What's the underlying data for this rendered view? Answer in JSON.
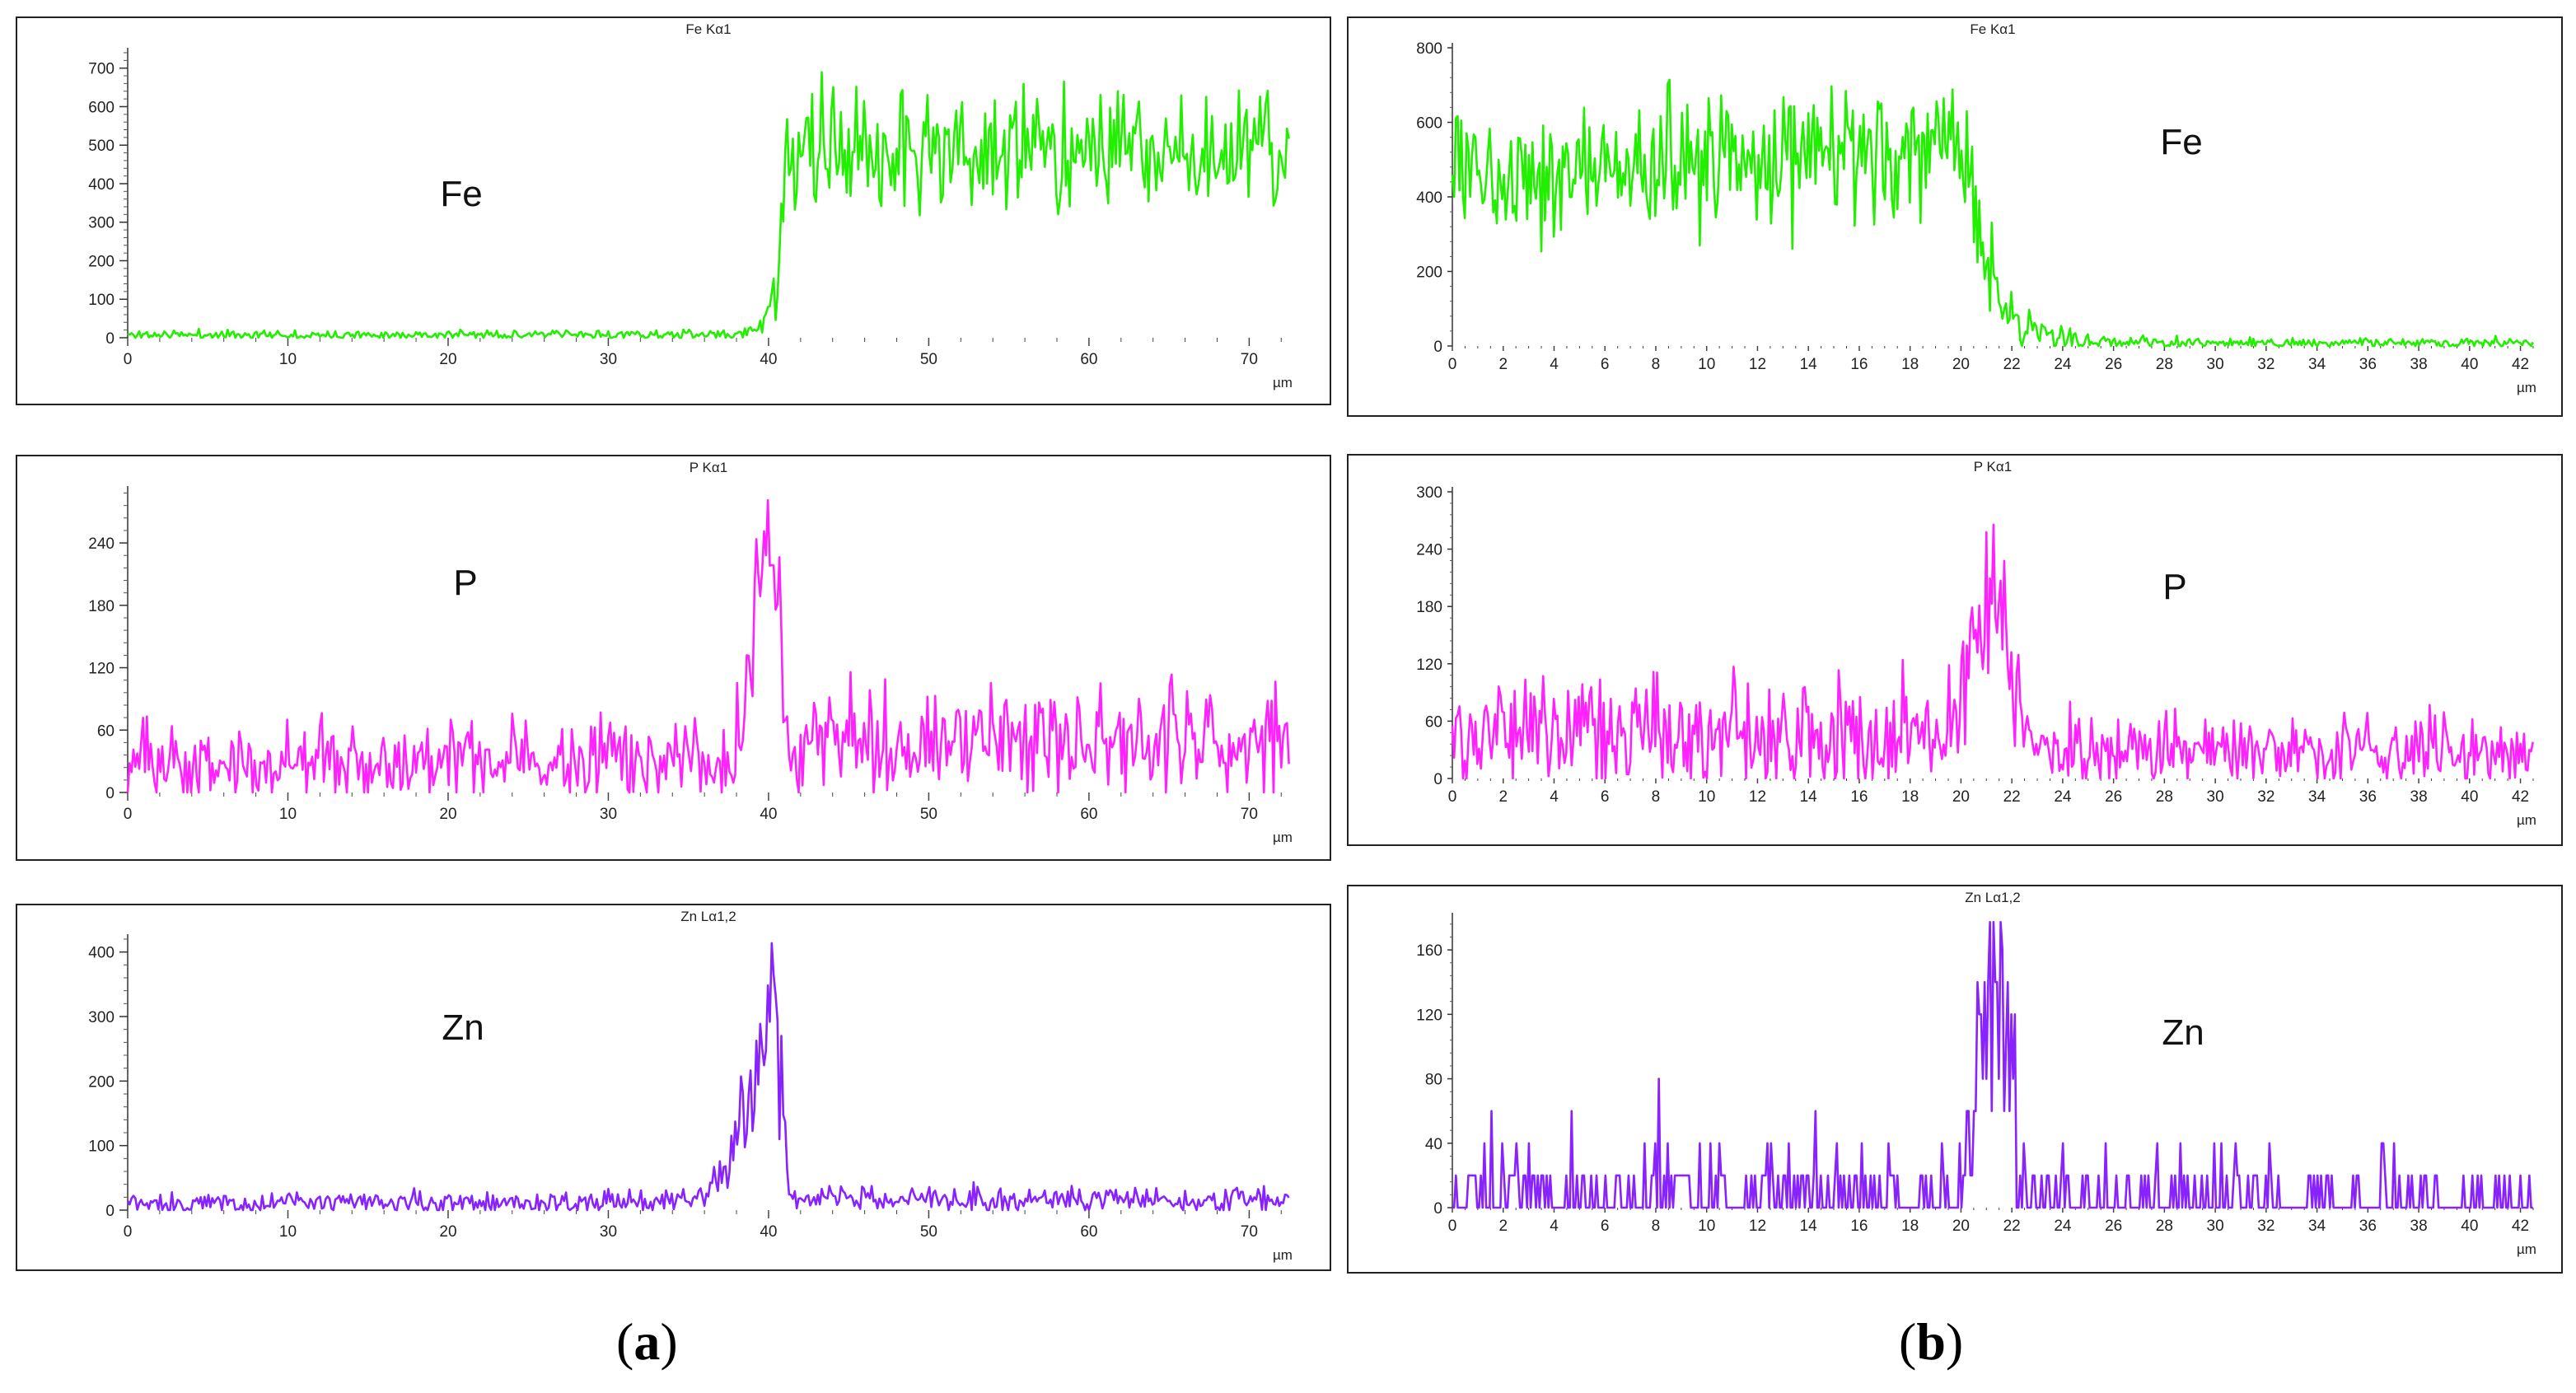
{
  "figure": {
    "captions": [
      {
        "open": "(",
        "letter": "a",
        "close": ")"
      },
      {
        "open": "(",
        "letter": "b",
        "close": ")"
      }
    ]
  },
  "chart_data": [
    {
      "id": "a-fe",
      "type": "line",
      "title": "Fe Kα1",
      "element_label": "Fe",
      "x_unit": "µm",
      "color": "#22ee00",
      "xlim": [
        0,
        72.5
      ],
      "ylim": [
        0,
        740
      ],
      "xticks": [
        0,
        10,
        20,
        30,
        40,
        50,
        60,
        70
      ],
      "yticks": [
        0,
        100,
        200,
        300,
        400,
        500,
        600,
        700
      ],
      "series": [
        {
          "name": "Fe Kα1",
          "noise": "gauss",
          "seed": 11,
          "step": 0.12,
          "profile": [
            [
              0,
              8,
              6
            ],
            [
              38,
              8,
              6
            ],
            [
              39.5,
              30,
              15
            ],
            [
              40.5,
              120,
              40
            ],
            [
              41,
              420,
              70
            ],
            [
              42,
              470,
              80
            ],
            [
              46,
              490,
              85
            ],
            [
              47,
              480,
              80
            ],
            [
              60,
              490,
              75
            ],
            [
              72.5,
              480,
              75
            ]
          ]
        }
      ]
    },
    {
      "id": "a-p",
      "type": "line",
      "title": "P Kα1",
      "element_label": "P",
      "x_unit": "µm",
      "color": "#ff22ff",
      "xlim": [
        0,
        72.5
      ],
      "ylim": [
        0,
        290
      ],
      "xticks": [
        0,
        10,
        20,
        30,
        40,
        50,
        60,
        70
      ],
      "yticks": [
        0,
        60,
        120,
        180,
        240
      ],
      "series": [
        {
          "name": "P Kα1",
          "noise": "gauss",
          "seed": 23,
          "step": 0.12,
          "profile": [
            [
              0,
              28,
              20
            ],
            [
              37,
              30,
              20
            ],
            [
              38.5,
              60,
              25
            ],
            [
              39.2,
              200,
              40
            ],
            [
              40,
              240,
              40
            ],
            [
              40.6,
              200,
              40
            ],
            [
              41.2,
              55,
              25
            ],
            [
              72.5,
              50,
              25
            ]
          ]
        }
      ]
    },
    {
      "id": "a-zn",
      "type": "line",
      "title": "Zn Lα1,2",
      "element_label": "Zn",
      "x_unit": "µm",
      "color": "#8822ff",
      "xlim": [
        0,
        72.5
      ],
      "ylim": [
        0,
        420
      ],
      "xticks": [
        0,
        10,
        20,
        30,
        40,
        50,
        60,
        70
      ],
      "yticks": [
        0,
        100,
        200,
        300,
        400
      ],
      "series": [
        {
          "name": "Zn Lα1,2",
          "noise": "gauss",
          "seed": 37,
          "step": 0.12,
          "profile": [
            [
              0,
              10,
              9
            ],
            [
              34,
              12,
              9
            ],
            [
              36,
              30,
              15
            ],
            [
              37.5,
              60,
              25
            ],
            [
              38.5,
              140,
              50
            ],
            [
              39.3,
              230,
              50
            ],
            [
              40.2,
              320,
              60
            ],
            [
              40.9,
              180,
              50
            ],
            [
              41.3,
              20,
              10
            ],
            [
              72.5,
              15,
              10
            ]
          ]
        }
      ]
    },
    {
      "id": "b-fe",
      "type": "line",
      "title": "Fe Kα1",
      "element_label": "Fe",
      "x_unit": "µm",
      "color": "#22ee00",
      "xlim": [
        0,
        42.5
      ],
      "ylim": [
        0,
        800
      ],
      "xticks": [
        0,
        2,
        4,
        6,
        8,
        10,
        12,
        14,
        16,
        18,
        20,
        22,
        24,
        26,
        28,
        30,
        32,
        34,
        36,
        38,
        40,
        42
      ],
      "yticks": [
        0,
        200,
        400,
        600,
        800
      ],
      "series": [
        {
          "name": "Fe Kα1",
          "noise": "gauss",
          "seed": 53,
          "step": 0.07,
          "profile": [
            [
              0,
              470,
              75
            ],
            [
              7,
              470,
              80
            ],
            [
              8.5,
              500,
              90
            ],
            [
              14,
              510,
              90
            ],
            [
              19.5,
              520,
              85
            ],
            [
              20.2,
              470,
              80
            ],
            [
              20.8,
              300,
              70
            ],
            [
              21.4,
              150,
              45
            ],
            [
              22,
              70,
              30
            ],
            [
              23.5,
              30,
              18
            ],
            [
              25,
              10,
              8
            ],
            [
              42.5,
              8,
              7
            ]
          ]
        }
      ]
    },
    {
      "id": "b-p",
      "type": "line",
      "title": "P Kα1",
      "element_label": "P",
      "x_unit": "µm",
      "color": "#ff22ff",
      "xlim": [
        0,
        42.5
      ],
      "ylim": [
        0,
        300
      ],
      "xticks": [
        0,
        2,
        4,
        6,
        8,
        10,
        12,
        14,
        16,
        18,
        20,
        22,
        24,
        26,
        28,
        30,
        32,
        34,
        36,
        38,
        40,
        42
      ],
      "yticks": [
        0,
        60,
        120,
        180,
        240,
        300
      ],
      "series": [
        {
          "name": "P Kα1",
          "noise": "gauss",
          "seed": 71,
          "step": 0.07,
          "profile": [
            [
              0,
              45,
              28
            ],
            [
              19,
              50,
              30
            ],
            [
              20,
              90,
              35
            ],
            [
              20.6,
              170,
              45
            ],
            [
              21.2,
              190,
              50
            ],
            [
              21.8,
              140,
              40
            ],
            [
              22.3,
              60,
              25
            ],
            [
              23,
              30,
              20
            ],
            [
              42.5,
              28,
              20
            ]
          ]
        }
      ]
    },
    {
      "id": "b-zn",
      "type": "line",
      "title": "Zn Lα1,2",
      "element_label": "Zn",
      "x_unit": "µm",
      "color": "#8822ff",
      "xlim": [
        0,
        42.5
      ],
      "ylim": [
        0,
        180
      ],
      "xticks": [
        0,
        2,
        4,
        6,
        8,
        10,
        12,
        14,
        16,
        18,
        20,
        22,
        24,
        26,
        28,
        30,
        32,
        34,
        36,
        38,
        40,
        42
      ],
      "yticks": [
        0,
        40,
        80,
        120,
        160
      ],
      "series": [
        {
          "name": "Zn Lα1,2",
          "noise": "count",
          "seed": 97,
          "step": 0.07,
          "profile": [
            [
              0,
              9,
              0
            ],
            [
              20,
              9,
              0
            ],
            [
              20.4,
              60,
              0
            ],
            [
              20.8,
              140,
              0
            ],
            [
              21.4,
              150,
              0
            ],
            [
              21.9,
              110,
              0
            ],
            [
              22.2,
              10,
              0
            ],
            [
              42.5,
              4,
              0
            ]
          ]
        }
      ]
    }
  ]
}
